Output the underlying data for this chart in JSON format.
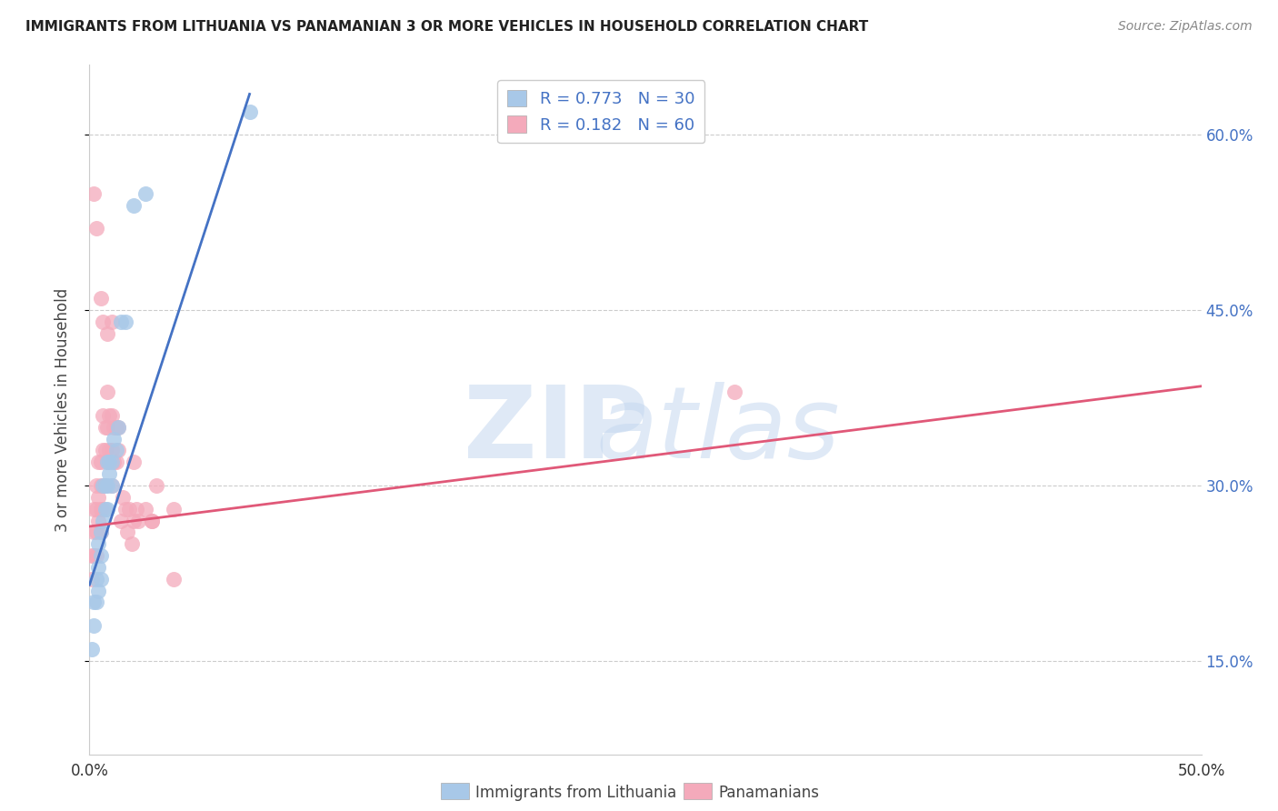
{
  "title": "IMMIGRANTS FROM LITHUANIA VS PANAMANIAN 3 OR MORE VEHICLES IN HOUSEHOLD CORRELATION CHART",
  "source": "Source: ZipAtlas.com",
  "ylabel": "3 or more Vehicles in Household",
  "y_ticks": [
    15.0,
    30.0,
    45.0,
    60.0
  ],
  "x_min": 0.0,
  "x_max": 0.5,
  "y_min": 0.07,
  "y_max": 0.66,
  "blue_R": 0.773,
  "blue_N": 30,
  "pink_R": 0.182,
  "pink_N": 60,
  "blue_color": "#a8c8e8",
  "pink_color": "#f4aabb",
  "blue_line_color": "#4472c4",
  "pink_line_color": "#e05878",
  "legend_label_blue": "Immigrants from Lithuania",
  "legend_label_pink": "Panamanians",
  "blue_scatter_x": [
    0.001,
    0.002,
    0.002,
    0.003,
    0.003,
    0.004,
    0.004,
    0.004,
    0.005,
    0.005,
    0.005,
    0.006,
    0.006,
    0.007,
    0.007,
    0.008,
    0.008,
    0.008,
    0.009,
    0.009,
    0.01,
    0.01,
    0.011,
    0.012,
    0.013,
    0.014,
    0.016,
    0.02,
    0.025,
    0.072
  ],
  "blue_scatter_y": [
    0.16,
    0.18,
    0.2,
    0.2,
    0.22,
    0.21,
    0.23,
    0.25,
    0.22,
    0.24,
    0.26,
    0.27,
    0.3,
    0.28,
    0.3,
    0.28,
    0.3,
    0.32,
    0.31,
    0.32,
    0.3,
    0.32,
    0.34,
    0.33,
    0.35,
    0.44,
    0.44,
    0.54,
    0.55,
    0.62
  ],
  "pink_scatter_x": [
    0.001,
    0.001,
    0.002,
    0.002,
    0.002,
    0.003,
    0.003,
    0.003,
    0.003,
    0.004,
    0.004,
    0.004,
    0.005,
    0.005,
    0.005,
    0.005,
    0.006,
    0.006,
    0.006,
    0.006,
    0.007,
    0.007,
    0.007,
    0.008,
    0.008,
    0.008,
    0.009,
    0.009,
    0.01,
    0.01,
    0.01,
    0.011,
    0.011,
    0.012,
    0.012,
    0.013,
    0.013,
    0.014,
    0.015,
    0.016,
    0.017,
    0.018,
    0.019,
    0.02,
    0.021,
    0.022,
    0.025,
    0.028,
    0.03,
    0.038,
    0.002,
    0.003,
    0.005,
    0.006,
    0.008,
    0.01,
    0.02,
    0.028,
    0.038,
    0.29
  ],
  "pink_scatter_y": [
    0.22,
    0.24,
    0.24,
    0.26,
    0.28,
    0.24,
    0.26,
    0.28,
    0.3,
    0.27,
    0.29,
    0.32,
    0.26,
    0.28,
    0.3,
    0.32,
    0.28,
    0.3,
    0.33,
    0.36,
    0.3,
    0.33,
    0.35,
    0.32,
    0.35,
    0.38,
    0.33,
    0.36,
    0.3,
    0.33,
    0.36,
    0.32,
    0.35,
    0.32,
    0.35,
    0.33,
    0.35,
    0.27,
    0.29,
    0.28,
    0.26,
    0.28,
    0.25,
    0.27,
    0.28,
    0.27,
    0.28,
    0.27,
    0.3,
    0.28,
    0.55,
    0.52,
    0.46,
    0.44,
    0.43,
    0.44,
    0.32,
    0.27,
    0.22,
    0.38
  ],
  "blue_trend_x": [
    0.0,
    0.072
  ],
  "blue_trend_y": [
    0.215,
    0.635
  ],
  "pink_trend_x": [
    0.0,
    0.5
  ],
  "pink_trend_y": [
    0.265,
    0.385
  ]
}
